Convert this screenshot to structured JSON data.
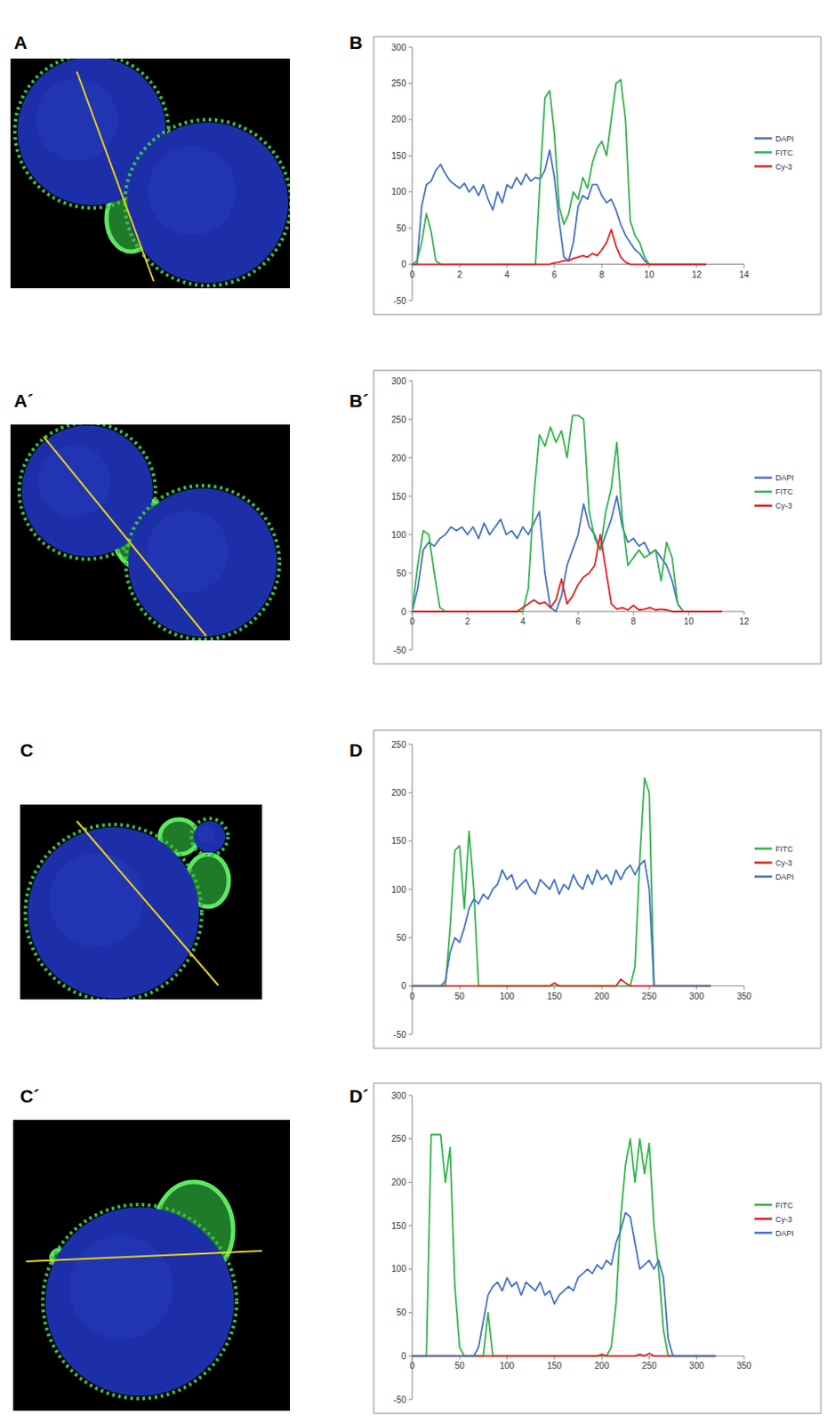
{
  "panels": [
    {
      "image": "A",
      "chart": "B"
    },
    {
      "image": "A´",
      "chart": "B´"
    },
    {
      "image": "C",
      "chart": "D"
    },
    {
      "image": "C´",
      "chart": "D´"
    }
  ],
  "chart_data": [
    {
      "type": "line",
      "legend": "right",
      "grid": false,
      "xlim": [
        0,
        14
      ],
      "xticks": [
        0,
        2,
        4,
        6,
        8,
        10,
        12,
        14
      ],
      "ylim": [
        -50,
        300
      ],
      "yticks": [
        -50,
        0,
        50,
        100,
        150,
        200,
        250,
        300
      ],
      "x": [
        0,
        0.2,
        0.4,
        0.6,
        0.8,
        1,
        1.2,
        1.4,
        1.6,
        1.8,
        2,
        2.2,
        2.4,
        2.6,
        2.8,
        3,
        3.2,
        3.4,
        3.6,
        3.8,
        4,
        4.2,
        4.4,
        4.6,
        4.8,
        5,
        5.2,
        5.4,
        5.6,
        5.8,
        6,
        6.2,
        6.4,
        6.6,
        6.8,
        7,
        7.2,
        7.4,
        7.6,
        7.8,
        8,
        8.2,
        8.4,
        8.6,
        8.8,
        9,
        9.2,
        9.4,
        9.6,
        9.8,
        10,
        10.2,
        10.4,
        10.6,
        10.8,
        11,
        11.2,
        11.4,
        11.6,
        11.8,
        12,
        12.2,
        12.4
      ],
      "series": [
        {
          "name": "DAPI",
          "color": "#4472c4",
          "values": [
            0,
            0,
            80,
            110,
            115,
            130,
            138,
            125,
            115,
            110,
            105,
            112,
            100,
            108,
            95,
            110,
            90,
            75,
            100,
            85,
            110,
            105,
            120,
            110,
            125,
            115,
            120,
            118,
            130,
            158,
            120,
            60,
            10,
            5,
            30,
            80,
            95,
            90,
            110,
            110,
            95,
            85,
            90,
            75,
            55,
            40,
            30,
            20,
            15,
            5,
            0,
            0,
            0,
            0,
            0,
            0,
            0,
            0,
            0,
            0,
            0,
            0,
            0
          ]
        },
        {
          "name": "FITC",
          "color": "#33b34a",
          "values": [
            0,
            5,
            30,
            70,
            45,
            5,
            0,
            0,
            0,
            0,
            0,
            0,
            0,
            0,
            0,
            0,
            0,
            0,
            0,
            0,
            0,
            0,
            0,
            0,
            0,
            0,
            0,
            120,
            230,
            240,
            180,
            80,
            55,
            70,
            100,
            90,
            120,
            105,
            140,
            160,
            170,
            150,
            200,
            250,
            255,
            200,
            60,
            40,
            30,
            10,
            0,
            0,
            0,
            0,
            0,
            0,
            0,
            0,
            0,
            0,
            0,
            0,
            0
          ]
        },
        {
          "name": "Cy-3",
          "color": "#e2201f",
          "values": [
            0,
            0,
            0,
            0,
            0,
            0,
            0,
            0,
            0,
            0,
            0,
            0,
            0,
            0,
            0,
            0,
            0,
            0,
            0,
            0,
            0,
            0,
            0,
            0,
            0,
            0,
            0,
            0,
            0,
            0,
            2,
            3,
            5,
            5,
            8,
            10,
            12,
            10,
            15,
            12,
            20,
            30,
            48,
            25,
            10,
            3,
            0,
            0,
            0,
            0,
            0,
            0,
            0,
            0,
            0,
            0,
            0,
            0,
            0,
            0,
            0,
            0,
            0
          ]
        }
      ]
    },
    {
      "type": "line",
      "legend": "right",
      "grid": false,
      "xlim": [
        0,
        12
      ],
      "xticks": [
        0,
        2,
        4,
        6,
        8,
        10,
        12
      ],
      "ylim": [
        -50,
        300
      ],
      "yticks": [
        -50,
        0,
        50,
        100,
        150,
        200,
        250,
        300
      ],
      "x": [
        0,
        0.2,
        0.4,
        0.6,
        0.8,
        1,
        1.2,
        1.4,
        1.6,
        1.8,
        2,
        2.2,
        2.4,
        2.6,
        2.8,
        3,
        3.2,
        3.4,
        3.6,
        3.8,
        4,
        4.2,
        4.4,
        4.6,
        4.8,
        5,
        5.2,
        5.4,
        5.6,
        5.8,
        6,
        6.2,
        6.4,
        6.6,
        6.8,
        7,
        7.2,
        7.4,
        7.6,
        7.8,
        8,
        8.2,
        8.4,
        8.6,
        8.8,
        9,
        9.2,
        9.4,
        9.6,
        9.8,
        10,
        10.2,
        10.4,
        10.6,
        10.8,
        11,
        11.2
      ],
      "series": [
        {
          "name": "DAPI",
          "color": "#4472c4",
          "values": [
            0,
            30,
            80,
            90,
            85,
            95,
            100,
            110,
            105,
            110,
            100,
            110,
            95,
            115,
            100,
            110,
            120,
            100,
            105,
            95,
            110,
            100,
            115,
            130,
            50,
            5,
            0,
            20,
            60,
            80,
            100,
            140,
            110,
            100,
            80,
            100,
            120,
            150,
            110,
            90,
            95,
            85,
            90,
            75,
            80,
            70,
            60,
            40,
            10,
            0,
            0,
            0,
            0,
            0,
            0,
            0,
            0
          ]
        },
        {
          "name": "FITC",
          "color": "#33b34a",
          "values": [
            0,
            60,
            105,
            100,
            50,
            5,
            0,
            0,
            0,
            0,
            0,
            0,
            0,
            0,
            0,
            0,
            0,
            0,
            0,
            0,
            0,
            30,
            150,
            230,
            215,
            240,
            220,
            235,
            200,
            255,
            255,
            250,
            130,
            95,
            80,
            130,
            160,
            220,
            120,
            60,
            70,
            80,
            70,
            75,
            80,
            40,
            90,
            70,
            10,
            0,
            0,
            0,
            0,
            0,
            0,
            0,
            0
          ]
        },
        {
          "name": "Cy-3",
          "color": "#e2201f",
          "values": [
            0,
            0,
            0,
            0,
            0,
            0,
            0,
            0,
            0,
            0,
            0,
            0,
            0,
            0,
            0,
            0,
            0,
            0,
            0,
            0,
            5,
            10,
            15,
            10,
            12,
            5,
            15,
            42,
            10,
            20,
            35,
            45,
            50,
            60,
            100,
            55,
            10,
            3,
            5,
            2,
            8,
            2,
            3,
            5,
            2,
            3,
            2,
            0,
            0,
            0,
            0,
            0,
            0,
            0,
            0,
            0,
            0
          ]
        }
      ]
    },
    {
      "type": "line",
      "legend": "right",
      "grid": false,
      "xlim": [
        0,
        350
      ],
      "xticks": [
        0,
        50,
        100,
        150,
        200,
        250,
        300,
        350
      ],
      "ylim": [
        -50,
        250
      ],
      "yticks": [
        -50,
        0,
        50,
        100,
        150,
        200,
        250
      ],
      "x": [
        0,
        5,
        10,
        15,
        20,
        25,
        30,
        35,
        40,
        45,
        50,
        55,
        60,
        65,
        70,
        75,
        80,
        85,
        90,
        95,
        100,
        105,
        110,
        115,
        120,
        125,
        130,
        135,
        140,
        145,
        150,
        155,
        160,
        165,
        170,
        175,
        180,
        185,
        190,
        195,
        200,
        205,
        210,
        215,
        220,
        225,
        230,
        235,
        240,
        245,
        250,
        255,
        260,
        265,
        270,
        275,
        280,
        285,
        290,
        295,
        300,
        305,
        310,
        315
      ],
      "series": [
        {
          "name": "FITC",
          "color": "#33b34a",
          "values": [
            0,
            0,
            0,
            0,
            0,
            0,
            0,
            0,
            60,
            140,
            145,
            80,
            160,
            100,
            0,
            0,
            0,
            0,
            0,
            0,
            0,
            0,
            0,
            0,
            0,
            0,
            0,
            0,
            0,
            0,
            0,
            0,
            0,
            0,
            0,
            0,
            0,
            0,
            0,
            0,
            0,
            0,
            0,
            0,
            0,
            0,
            0,
            20,
            130,
            215,
            200,
            0,
            0,
            0,
            0,
            0,
            0,
            0,
            0,
            0,
            0,
            0,
            0,
            0
          ]
        },
        {
          "name": "Cy-3",
          "color": "#e2201f",
          "values": [
            0,
            0,
            0,
            0,
            0,
            0,
            0,
            0,
            0,
            0,
            0,
            0,
            0,
            0,
            0,
            0,
            0,
            0,
            0,
            0,
            0,
            0,
            0,
            0,
            0,
            0,
            0,
            0,
            0,
            0,
            3,
            0,
            0,
            0,
            0,
            0,
            0,
            0,
            0,
            0,
            0,
            0,
            0,
            0,
            7,
            3,
            0,
            0,
            0,
            0,
            0,
            0,
            0,
            0,
            0,
            0,
            0,
            0,
            0,
            0,
            0,
            0,
            0,
            0
          ]
        },
        {
          "name": "DAPI",
          "color": "#4472c4",
          "values": [
            0,
            0,
            0,
            0,
            0,
            0,
            0,
            5,
            35,
            50,
            45,
            60,
            80,
            90,
            85,
            95,
            90,
            100,
            105,
            120,
            110,
            115,
            100,
            105,
            110,
            100,
            95,
            110,
            105,
            100,
            110,
            95,
            105,
            100,
            115,
            105,
            100,
            115,
            105,
            120,
            110,
            115,
            105,
            120,
            110,
            120,
            125,
            115,
            125,
            130,
            100,
            0,
            0,
            0,
            0,
            0,
            0,
            0,
            0,
            0,
            0,
            0,
            0,
            0
          ]
        }
      ]
    },
    {
      "type": "line",
      "legend": "right",
      "grid": false,
      "xlim": [
        0,
        350
      ],
      "xticks": [
        0,
        50,
        100,
        150,
        200,
        250,
        300,
        350
      ],
      "ylim": [
        -50,
        300
      ],
      "yticks": [
        -50,
        0,
        50,
        100,
        150,
        200,
        250,
        300
      ],
      "x": [
        0,
        5,
        10,
        15,
        20,
        25,
        30,
        35,
        40,
        45,
        50,
        55,
        60,
        65,
        70,
        75,
        80,
        85,
        90,
        95,
        100,
        105,
        110,
        115,
        120,
        125,
        130,
        135,
        140,
        145,
        150,
        155,
        160,
        165,
        170,
        175,
        180,
        185,
        190,
        195,
        200,
        205,
        210,
        215,
        220,
        225,
        230,
        235,
        240,
        245,
        250,
        255,
        260,
        265,
        270,
        275,
        280,
        285,
        290,
        295,
        300,
        305,
        310,
        315,
        320
      ],
      "series": [
        {
          "name": "FITC",
          "color": "#33b34a",
          "values": [
            0,
            0,
            0,
            0,
            255,
            255,
            255,
            200,
            240,
            80,
            10,
            0,
            0,
            0,
            0,
            0,
            50,
            0,
            0,
            0,
            0,
            0,
            0,
            0,
            0,
            0,
            0,
            0,
            0,
            0,
            0,
            0,
            0,
            0,
            0,
            0,
            0,
            0,
            0,
            0,
            0,
            0,
            10,
            60,
            160,
            220,
            250,
            200,
            250,
            210,
            245,
            150,
            100,
            30,
            0,
            0,
            0,
            0,
            0,
            0,
            0,
            0,
            0,
            0,
            0
          ]
        },
        {
          "name": "Cy-3",
          "color": "#e2201f",
          "values": [
            0,
            0,
            0,
            0,
            0,
            0,
            0,
            0,
            0,
            0,
            0,
            0,
            0,
            0,
            0,
            0,
            0,
            0,
            0,
            0,
            0,
            0,
            0,
            0,
            0,
            0,
            0,
            0,
            0,
            0,
            0,
            0,
            0,
            0,
            0,
            0,
            0,
            0,
            0,
            0,
            2,
            0,
            0,
            0,
            0,
            0,
            0,
            0,
            2,
            0,
            3,
            0,
            0,
            0,
            0,
            0,
            0,
            0,
            0,
            0,
            0,
            0,
            0,
            0,
            0
          ]
        },
        {
          "name": "DAPI",
          "color": "#4472c4",
          "values": [
            0,
            0,
            0,
            0,
            0,
            0,
            0,
            0,
            0,
            0,
            0,
            0,
            0,
            0,
            10,
            40,
            70,
            80,
            85,
            75,
            90,
            80,
            85,
            70,
            85,
            80,
            75,
            85,
            70,
            75,
            60,
            70,
            75,
            80,
            75,
            90,
            95,
            100,
            95,
            105,
            100,
            110,
            105,
            130,
            145,
            165,
            160,
            130,
            100,
            105,
            110,
            100,
            110,
            90,
            20,
            0,
            0,
            0,
            0,
            0,
            0,
            0,
            0,
            0,
            0
          ]
        }
      ]
    }
  ]
}
